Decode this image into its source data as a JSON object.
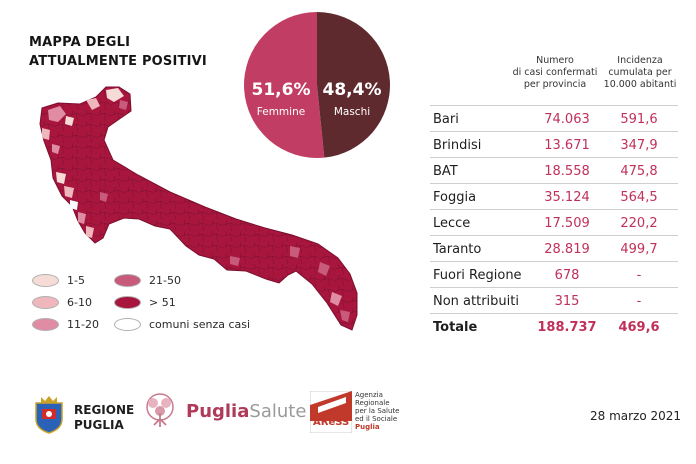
{
  "title": {
    "line1": "MAPPA DEGLI",
    "line2": "ATTUALMENTE POSITIVI"
  },
  "gender": {
    "female": {
      "pct": "51,6%",
      "label": "Femmine",
      "value": 51.6,
      "color": "#c23d63"
    },
    "male": {
      "pct": "48,4%",
      "label": "Maschi",
      "value": 48.4,
      "color": "#5e2a2e"
    }
  },
  "legend": {
    "items": [
      {
        "label": "1-5",
        "color": "#f6dbd7"
      },
      {
        "label": "6-10",
        "color": "#efb7bc"
      },
      {
        "label": "11-20",
        "color": "#df8ca4"
      },
      {
        "label": "21-50",
        "color": "#c85a7c"
      },
      {
        "label": "> 51",
        "color": "#a8163e"
      },
      {
        "label": "comuni senza casi",
        "color": "#ffffff"
      }
    ]
  },
  "table": {
    "col_cases": [
      "Numero",
      "di casi confermati",
      "per provincia"
    ],
    "col_incidence": [
      "Incidenza",
      "cumulata per",
      "10.000 abitanti"
    ],
    "rows": [
      {
        "province": "Bari",
        "cases": "74.063",
        "incidence": "591,6"
      },
      {
        "province": "Brindisi",
        "cases": "13.671",
        "incidence": "347,9"
      },
      {
        "province": "BAT",
        "cases": "18.558",
        "incidence": "475,8"
      },
      {
        "province": "Foggia",
        "cases": "35.124",
        "incidence": "564,5"
      },
      {
        "province": "Lecce",
        "cases": "17.509",
        "incidence": "220,2"
      },
      {
        "province": "Taranto",
        "cases": "28.819",
        "incidence": "499,7"
      },
      {
        "province": "Fuori Regione",
        "cases": "678",
        "incidence": "-"
      },
      {
        "province": "Non attribuiti",
        "cases": "315",
        "incidence": "-"
      }
    ],
    "total": {
      "province": "Totale",
      "cases": "188.737",
      "incidence": "469,6"
    }
  },
  "footer": {
    "regione": [
      "REGIONE",
      "PUGLIA"
    ],
    "puglia_salute": {
      "part1": "Puglia",
      "part2": "Salute"
    },
    "aress": {
      "logo": "AReSS",
      "lines": [
        "Agenzia",
        "Regionale",
        "per la Salute",
        "ed il Sociale"
      ],
      "last": "Puglia"
    },
    "date": "28 marzo 2021"
  },
  "colors": {
    "accent": "#c0305a",
    "dark": "#5e2a2e",
    "map_fill": "#a8163e"
  }
}
